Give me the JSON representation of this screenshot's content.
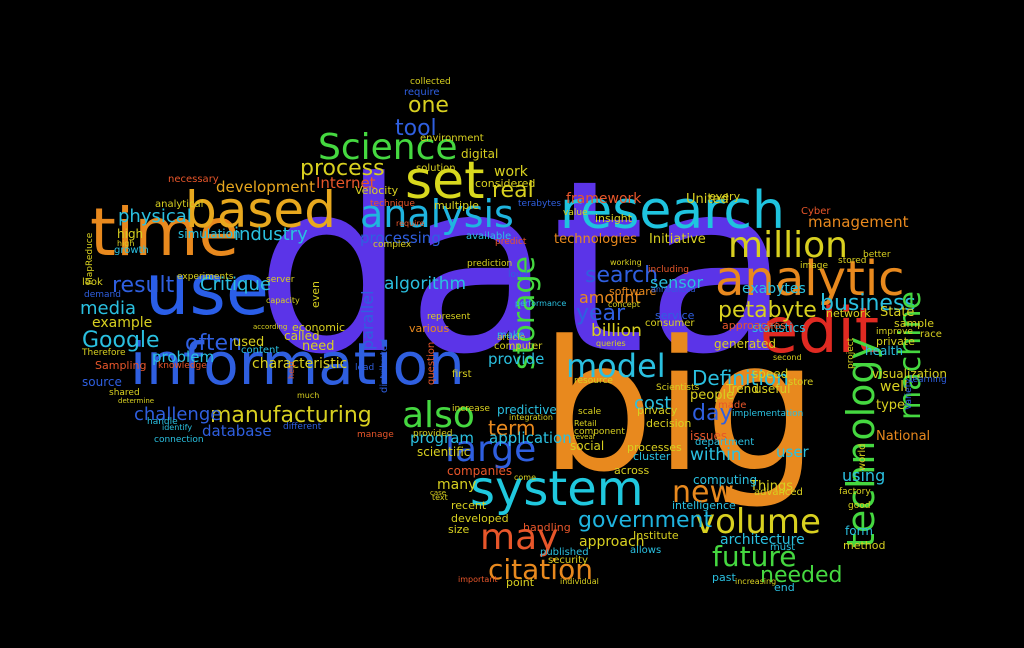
{
  "words": [
    {
      "text": "data",
      "color": "#5b34e8"
    },
    {
      "text": "big",
      "color": "#e8891e"
    },
    {
      "text": "information",
      "color": "#2f5fe0"
    },
    {
      "text": "use",
      "color": "#2a5ee8"
    },
    {
      "text": "time",
      "color": "#e8891e"
    },
    {
      "text": "research",
      "color": "#1fc4df"
    },
    {
      "text": "system",
      "color": "#20c8de"
    },
    {
      "text": "edit",
      "color": "#e02a22"
    },
    {
      "text": "analytic",
      "color": "#e8891e"
    },
    {
      "text": "based",
      "color": "#e8a81e"
    },
    {
      "text": "set",
      "color": "#d8d81e"
    },
    {
      "text": "analysis",
      "color": "#1fb4df"
    },
    {
      "text": "Science",
      "color": "#45d840"
    },
    {
      "text": "million",
      "color": "#d8d020"
    },
    {
      "text": "large",
      "color": "#2f5fe0"
    },
    {
      "text": "may",
      "color": "#e8562a"
    },
    {
      "text": "volume",
      "color": "#d8d020"
    },
    {
      "text": "also",
      "color": "#45d840"
    },
    {
      "text": "model",
      "color": "#2ac0e0"
    },
    {
      "text": "new",
      "color": "#e8891e"
    },
    {
      "text": "future",
      "color": "#45d840"
    },
    {
      "text": "citation",
      "color": "#e8891e"
    },
    {
      "text": "government",
      "color": "#1fb4df"
    },
    {
      "text": "technology",
      "color": "#45d840"
    },
    {
      "text": "manufacturing",
      "color": "#d8d020"
    },
    {
      "text": "petabyte",
      "color": "#d8d020"
    },
    {
      "text": "Google",
      "color": "#2ac0e0"
    },
    {
      "text": "one",
      "color": "#d8d020"
    },
    {
      "text": "tool",
      "color": "#2f5fe0"
    },
    {
      "text": "process",
      "color": "#d8d020"
    },
    {
      "text": "real",
      "color": "#d8d020"
    },
    {
      "text": "storage",
      "color": "#45d840"
    },
    {
      "text": "search",
      "color": "#2f5fe0"
    },
    {
      "text": "result",
      "color": "#2f5fe0"
    },
    {
      "text": "often",
      "color": "#2f5fe0"
    },
    {
      "text": "business",
      "color": "#2ac0e0"
    },
    {
      "text": "Definition",
      "color": "#2ac0e0"
    },
    {
      "text": "needed",
      "color": "#45d840"
    },
    {
      "text": "machine",
      "color": "#45d840"
    },
    {
      "text": "term",
      "color": "#e8891e"
    },
    {
      "text": "day",
      "color": "#2f5fe0"
    },
    {
      "text": "media",
      "color": "#2ac0e0"
    },
    {
      "text": "industry",
      "color": "#2ac0e0"
    },
    {
      "text": "physical",
      "color": "#2ac0e0"
    },
    {
      "text": "development",
      "color": "#e8a81e"
    },
    {
      "text": "Critique",
      "color": "#2ac0e0"
    },
    {
      "text": "challenge",
      "color": "#2f5fe0"
    },
    {
      "text": "problem",
      "color": "#2ac0e0"
    },
    {
      "text": "algorithm",
      "color": "#2ac0e0"
    },
    {
      "text": "Internet",
      "color": "#e8562a"
    },
    {
      "text": "application",
      "color": "#2ac0e0"
    },
    {
      "text": "provide",
      "color": "#2ac0e0"
    },
    {
      "text": "year",
      "color": "#2f5fe0"
    },
    {
      "text": "amount",
      "color": "#e8891e"
    },
    {
      "text": "billion",
      "color": "#d8d020"
    },
    {
      "text": "work",
      "color": "#d8d020"
    },
    {
      "text": "framework",
      "color": "#e8562a"
    },
    {
      "text": "management",
      "color": "#e8891e"
    },
    {
      "text": "exabytes",
      "color": "#2ac0e0"
    },
    {
      "text": "sensor",
      "color": "#2ac0e0"
    },
    {
      "text": "within",
      "color": "#2ac0e0"
    },
    {
      "text": "architecture",
      "color": "#2ac0e0"
    },
    {
      "text": "approach",
      "color": "#d8d020"
    },
    {
      "text": "program",
      "color": "#2ac0e0"
    },
    {
      "text": "database",
      "color": "#2f5fe0"
    },
    {
      "text": "parallel",
      "color": "#2f5fe0"
    },
    {
      "text": "processing",
      "color": "#2f5fe0"
    },
    {
      "text": "characteristic",
      "color": "#d8d020"
    },
    {
      "text": "cost",
      "color": "#2ac0e0"
    },
    {
      "text": "user",
      "color": "#2ac0e0"
    },
    {
      "text": "using",
      "color": "#2ac0e0"
    },
    {
      "text": "example",
      "color": "#d8d020"
    },
    {
      "text": "simulation",
      "color": "#2ac0e0"
    },
    {
      "text": "many",
      "color": "#d8d020"
    },
    {
      "text": "digital",
      "color": "#d8d020"
    },
    {
      "text": "United",
      "color": "#d8d020"
    },
    {
      "text": "State",
      "color": "#d8d020"
    },
    {
      "text": "National",
      "color": "#e8891e"
    },
    {
      "text": "companies",
      "color": "#e8562a"
    },
    {
      "text": "technologies",
      "color": "#e8891e"
    },
    {
      "text": "Initiative",
      "color": "#d8d020"
    },
    {
      "text": "people",
      "color": "#d8d020"
    },
    {
      "text": "statistics",
      "color": "#2ac0e0"
    },
    {
      "text": "visualization",
      "color": "#d8d020"
    },
    {
      "text": "health",
      "color": "#2ac0e0"
    },
    {
      "text": "Velocity",
      "color": "#d8d020"
    },
    {
      "text": "considered",
      "color": "#d8d020"
    },
    {
      "text": "predictive",
      "color": "#2ac0e0"
    },
    {
      "text": "scientific",
      "color": "#d8d020"
    },
    {
      "text": "social",
      "color": "#d8d020"
    },
    {
      "text": "Sampling",
      "color": "#e8562a"
    },
    {
      "text": "source",
      "color": "#2f5fe0"
    },
    {
      "text": "used",
      "color": "#d8d020"
    },
    {
      "text": "need",
      "color": "#d8d020"
    },
    {
      "text": "called",
      "color": "#d8d020"
    },
    {
      "text": "economic",
      "color": "#d8d020"
    },
    {
      "text": "Things",
      "color": "#d8d020"
    },
    {
      "text": "computing",
      "color": "#2ac0e0"
    },
    {
      "text": "intelligence",
      "color": "#2ac0e0"
    },
    {
      "text": "past",
      "color": "#2ac0e0"
    },
    {
      "text": "end",
      "color": "#2ac0e0"
    },
    {
      "text": "method",
      "color": "#d8d020"
    },
    {
      "text": "form",
      "color": "#2ac0e0"
    },
    {
      "text": "issues",
      "color": "#e8562a"
    },
    {
      "text": "Trend",
      "color": "#d8d020"
    },
    {
      "text": "useful",
      "color": "#d8d020"
    },
    {
      "text": "speed",
      "color": "#d8d020"
    },
    {
      "text": "generated",
      "color": "#d8d020"
    },
    {
      "text": "approaches",
      "color": "#e8562a"
    },
    {
      "text": "network",
      "color": "#d8d020"
    },
    {
      "text": "sample",
      "color": "#d8d020"
    },
    {
      "text": "type",
      "color": "#d8d020"
    },
    {
      "text": "well",
      "color": "#d8d020"
    },
    {
      "text": "private",
      "color": "#d8d020"
    },
    {
      "text": "made",
      "color": "#e8562a"
    },
    {
      "text": "service",
      "color": "#2f5fe0"
    },
    {
      "text": "consumer",
      "color": "#d8d020"
    },
    {
      "text": "privacy",
      "color": "#d8d020"
    },
    {
      "text": "decision",
      "color": "#d8d020"
    },
    {
      "text": "insight",
      "color": "#d8d020"
    },
    {
      "text": "software",
      "color": "#e8891e"
    },
    {
      "text": "cluster",
      "color": "#2ac0e0"
    },
    {
      "text": "across",
      "color": "#d8d020"
    },
    {
      "text": "processes",
      "color": "#d8d020"
    },
    {
      "text": "developed",
      "color": "#d8d020"
    },
    {
      "text": "recent",
      "color": "#d8d020"
    },
    {
      "text": "size",
      "color": "#d8d020"
    },
    {
      "text": "handling",
      "color": "#e8562a"
    },
    {
      "text": "published",
      "color": "#2ac0e0"
    },
    {
      "text": "point",
      "color": "#d8d020"
    },
    {
      "text": "allows",
      "color": "#2ac0e0"
    },
    {
      "text": "Institute",
      "color": "#d8d020"
    },
    {
      "text": "department",
      "color": "#2ac0e0"
    },
    {
      "text": "advanced",
      "color": "#d8d020"
    },
    {
      "text": "must",
      "color": "#2ac0e0"
    },
    {
      "text": "every",
      "color": "#d8d020"
    },
    {
      "text": "environment",
      "color": "#d8d020"
    },
    {
      "text": "solution",
      "color": "#d8d020"
    },
    {
      "text": "require",
      "color": "#2f5fe0"
    },
    {
      "text": "collected",
      "color": "#d8d020"
    },
    {
      "text": "multiple",
      "color": "#d8d020"
    },
    {
      "text": "terabytes",
      "color": "#2f5fe0"
    },
    {
      "text": "available",
      "color": "#2ac0e0"
    },
    {
      "text": "complex",
      "color": "#d8d020"
    },
    {
      "text": "Cyber",
      "color": "#e8562a"
    },
    {
      "text": "image",
      "color": "#d8d020"
    },
    {
      "text": "stored",
      "color": "#d8d020"
    },
    {
      "text": "better",
      "color": "#d8d020"
    },
    {
      "text": "improve",
      "color": "#d8d020"
    },
    {
      "text": "race",
      "color": "#d8d020"
    },
    {
      "text": "learning",
      "color": "#2f5fe0"
    },
    {
      "text": "Variety",
      "color": "#2f5fe0"
    },
    {
      "text": "factory",
      "color": "#d8d020"
    },
    {
      "text": "good",
      "color": "#d8d020"
    },
    {
      "text": "project",
      "color": "#d8d020"
    },
    {
      "text": "second",
      "color": "#d8d020"
    },
    {
      "text": "high",
      "color": "#d8d020"
    },
    {
      "text": "growth",
      "color": "#2ac0e0"
    },
    {
      "text": "necessary",
      "color": "#e8562a"
    },
    {
      "text": "analytical",
      "color": "#d8d020"
    },
    {
      "text": "look",
      "color": "#d8d020"
    },
    {
      "text": "demand",
      "color": "#2f5fe0"
    },
    {
      "text": "Therefore",
      "color": "#d8d020"
    },
    {
      "text": "shared",
      "color": "#d8d020"
    },
    {
      "text": "knowledge",
      "color": "#e8562a"
    },
    {
      "text": "connection",
      "color": "#2ac0e0"
    },
    {
      "text": "experiments",
      "color": "#d8d020"
    },
    {
      "text": "server",
      "color": "#d8d020"
    },
    {
      "text": "content",
      "color": "#2ac0e0"
    },
    {
      "text": "various",
      "color": "#e8891e"
    },
    {
      "text": "represent",
      "color": "#d8d020"
    },
    {
      "text": "article",
      "color": "#d8d020"
    },
    {
      "text": "computer",
      "color": "#d8d020"
    },
    {
      "text": "make",
      "color": "#2ac0e0"
    },
    {
      "text": "first",
      "color": "#d8d020"
    },
    {
      "text": "increase",
      "color": "#d8d020"
    },
    {
      "text": "component",
      "color": "#d8d020"
    },
    {
      "text": "security",
      "color": "#d8d020"
    },
    {
      "text": "Scientists",
      "color": "#d8d020"
    },
    {
      "text": "resource",
      "color": "#d8d020"
    },
    {
      "text": "prediction",
      "color": "#d8d020"
    },
    {
      "text": "even",
      "color": "#d8d020"
    },
    {
      "text": "distributed",
      "color": "#2f5fe0"
    },
    {
      "text": "MapReduce",
      "color": "#d8d020"
    },
    {
      "text": "manage",
      "color": "#e8562a"
    },
    {
      "text": "scale",
      "color": "#d8d020"
    },
    {
      "text": "Retail",
      "color": "#d8d020"
    },
    {
      "text": "predict",
      "color": "#e8562a"
    },
    {
      "text": "store",
      "color": "#d8d020"
    },
    {
      "text": "implementation",
      "color": "#2ac0e0"
    },
    {
      "text": "world",
      "color": "#d8d020"
    },
    {
      "text": "question",
      "color": "#e8562a"
    },
    {
      "text": "including",
      "color": "#e8562a"
    },
    {
      "text": "concept",
      "color": "#d8d020"
    },
    {
      "text": "technique",
      "color": "#e8562a"
    },
    {
      "text": "working",
      "color": "#d8d020"
    },
    {
      "text": "value",
      "color": "#d8d020"
    },
    {
      "text": "loud",
      "color": "#2f5fe0"
    },
    {
      "text": "individual",
      "color": "#d8d020"
    },
    {
      "text": "important",
      "color": "#e8562a"
    },
    {
      "text": "announced",
      "color": "#2f5fe0"
    },
    {
      "text": "increasing",
      "color": "#d8d020"
    },
    {
      "text": "provided",
      "color": "#d8d020"
    },
    {
      "text": "queries",
      "color": "#d8d020"
    },
    {
      "text": "integration",
      "color": "#d8d020"
    },
    {
      "text": "performance",
      "color": "#2ac0e0"
    },
    {
      "text": "come",
      "color": "#d8d020"
    },
    {
      "text": "text",
      "color": "#d8d020"
    },
    {
      "text": "case",
      "color": "#d8d020"
    },
    {
      "text": "different",
      "color": "#2f5fe0"
    },
    {
      "text": "require",
      "color": "#e8562a"
    },
    {
      "text": "capacity",
      "color": "#d8d020"
    },
    {
      "text": "much",
      "color": "#d8d020"
    },
    {
      "text": "lead",
      "color": "#2f5fe0"
    },
    {
      "text": "help",
      "color": "#e8562a"
    },
    {
      "text": "reveal",
      "color": "#d8d020"
    },
    {
      "text": "high",
      "color": "#d8d020"
    },
    {
      "text": "identify",
      "color": "#2ac0e0"
    },
    {
      "text": "handle",
      "color": "#2ac0e0"
    },
    {
      "text": "determine",
      "color": "#d8d020"
    },
    {
      "text": "according",
      "color": "#d8d020"
    }
  ]
}
